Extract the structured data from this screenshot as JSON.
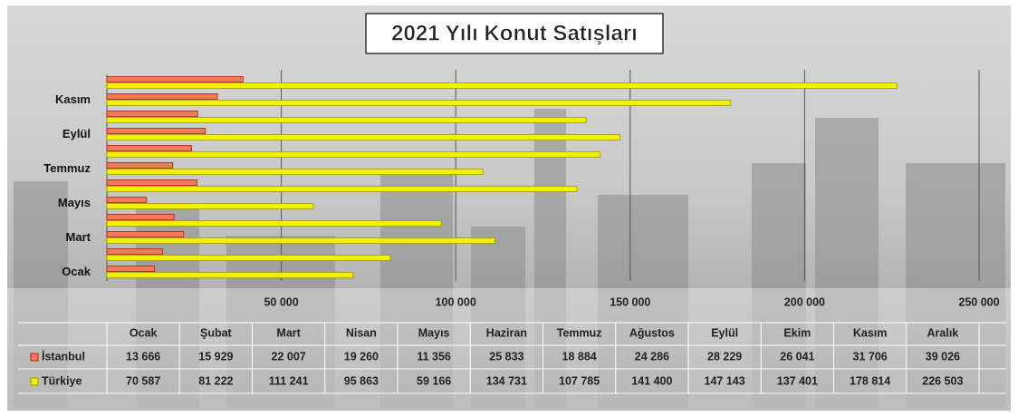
{
  "chart_data": {
    "type": "bar",
    "orientation": "horizontal",
    "title": "2021 Yılı Konut Satışları",
    "categories": [
      "Ocak",
      "Şubat",
      "Mart",
      "Nisan",
      "Mayıs",
      "Haziran",
      "Temmuz",
      "Ağustos",
      "Eylül",
      "Ekim",
      "Kasım",
      "Aralık"
    ],
    "series": [
      {
        "name": "İstanbul",
        "color": "#ef7a5c",
        "values": [
          13666,
          15929,
          22007,
          19260,
          11356,
          25833,
          18884,
          24286,
          28229,
          26041,
          31706,
          39026
        ],
        "value_labels": [
          "13 666",
          "15 929",
          "22 007",
          "19 260",
          "11 356",
          "25 833",
          "18 884",
          "24 286",
          "28 229",
          "26 041",
          "31 706",
          "39 026"
        ]
      },
      {
        "name": "Türkiye",
        "color": "#f2f200",
        "values": [
          70587,
          81222,
          111241,
          95863,
          59166,
          134731,
          107785,
          141400,
          147143,
          137401,
          178814,
          226503
        ],
        "value_labels": [
          "70 587",
          "81 222",
          "111 241",
          "95 863",
          "59 166",
          "134 731",
          "107 785",
          "141 400",
          "147 143",
          "137 401",
          "178 814",
          "226 503"
        ]
      }
    ],
    "xlim": [
      0,
      250000
    ],
    "xticks": [
      {
        "value": 50000,
        "label": "50 000"
      },
      {
        "value": 100000,
        "label": "100 000"
      },
      {
        "value": 150000,
        "label": "150 000"
      },
      {
        "value": 200000,
        "label": "200 000"
      },
      {
        "value": 250000,
        "label": "250 000"
      }
    ],
    "grid": true
  }
}
